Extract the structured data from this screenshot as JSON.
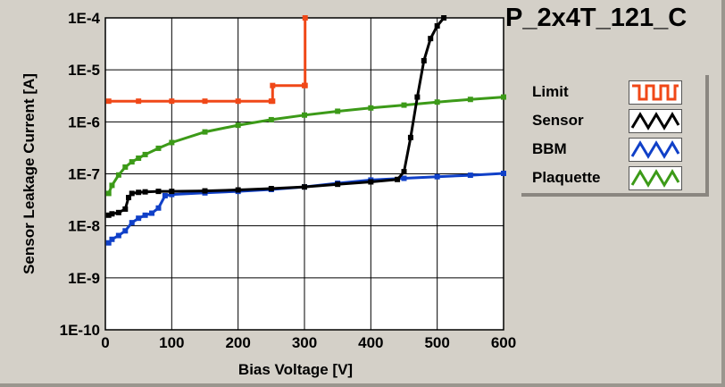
{
  "chart_data": {
    "type": "line",
    "title": "P_2x4T_121_C",
    "xlabel": "Bias Voltage [V]",
    "ylabel": "Sensor Leakage Current [A]",
    "xlim": [
      0,
      600
    ],
    "ylim": [
      1e-10,
      0.0001
    ],
    "yscale": "log",
    "grid": true,
    "legend_position": "right",
    "x_ticks": [
      "0",
      "100",
      "200",
      "300",
      "400",
      "500",
      "600"
    ],
    "y_ticks": [
      "1E-10",
      "1E-9",
      "1E-8",
      "1E-7",
      "1E-6",
      "1E-5",
      "1E-4"
    ],
    "series": [
      {
        "name": "Limit",
        "color": "#f04818",
        "marker": "square",
        "x": [
          5,
          50,
          100,
          150,
          200,
          250,
          252,
          252,
          300,
          301,
          301
        ],
        "y": [
          2.5e-06,
          2.5e-06,
          2.5e-06,
          2.5e-06,
          2.5e-06,
          2.5e-06,
          2.5e-06,
          5e-06,
          5e-06,
          5e-06,
          0.0001
        ]
      },
      {
        "name": "Sensor",
        "color": "#000000",
        "marker": "square",
        "x": [
          5,
          10,
          20,
          30,
          35,
          40,
          50,
          60,
          80,
          100,
          150,
          200,
          250,
          300,
          350,
          400,
          440,
          450,
          460,
          470,
          480,
          490,
          500,
          510
        ],
        "y": [
          1.6e-08,
          1.7e-08,
          1.8e-08,
          2.1e-08,
          3.5e-08,
          4.2e-08,
          4.4e-08,
          4.5e-08,
          4.6e-08,
          4.6e-08,
          4.7e-08,
          4.9e-08,
          5.2e-08,
          5.6e-08,
          6.3e-08,
          7e-08,
          7.8e-08,
          1.1e-07,
          5e-07,
          3e-06,
          1.5e-05,
          4e-05,
          7e-05,
          0.0001
        ]
      },
      {
        "name": "BBM",
        "color": "#1040c8",
        "marker": "square",
        "x": [
          5,
          10,
          20,
          30,
          40,
          50,
          60,
          70,
          80,
          90,
          100,
          150,
          200,
          250,
          300,
          350,
          400,
          450,
          500,
          550,
          600
        ],
        "y": [
          4.7e-09,
          5.5e-09,
          6.5e-09,
          8e-09,
          1.15e-08,
          1.4e-08,
          1.6e-08,
          1.75e-08,
          2.2e-08,
          3.8e-08,
          4e-08,
          4.3e-08,
          4.6e-08,
          5e-08,
          5.6e-08,
          6.6e-08,
          7.6e-08,
          8.2e-08,
          8.8e-08,
          9.4e-08,
          1.02e-07
        ]
      },
      {
        "name": "Plaquette",
        "color": "#3c9a18",
        "marker": "square",
        "x": [
          5,
          10,
          20,
          30,
          40,
          50,
          60,
          80,
          100,
          150,
          200,
          250,
          300,
          350,
          400,
          450,
          500,
          550,
          600
        ],
        "y": [
          4.2e-08,
          6e-08,
          9.5e-08,
          1.35e-07,
          1.7e-07,
          2e-07,
          2.35e-07,
          3.1e-07,
          4e-07,
          6.4e-07,
          8.6e-07,
          1.1e-06,
          1.35e-06,
          1.6e-06,
          1.85e-06,
          2.1e-06,
          2.4e-06,
          2.7e-06,
          3e-06
        ]
      }
    ]
  }
}
